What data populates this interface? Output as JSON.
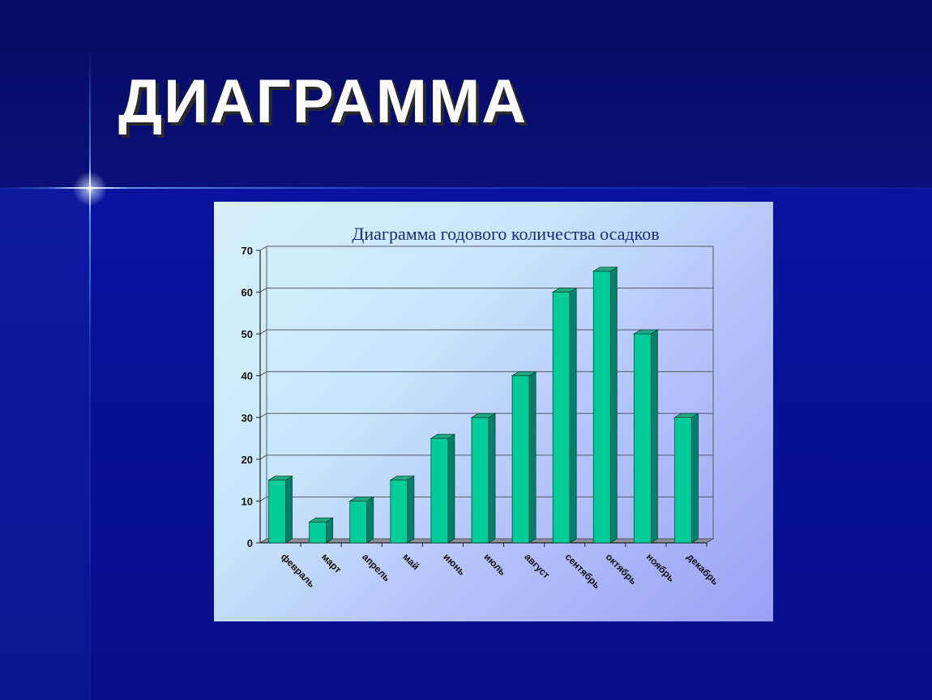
{
  "slide": {
    "title": "ДИАГРАММА"
  },
  "colors": {
    "background": "#0a0e86",
    "bar_front": "#00cc99",
    "bar_side": "#00806a",
    "bar_top": "#22a884",
    "chart_title": "#1c2a7a"
  },
  "chart_data": {
    "type": "bar",
    "title": "Диаграмма годового количества осадков",
    "xlabel": "",
    "ylabel": "",
    "categories": [
      "февраль",
      "март",
      "апрель",
      "май",
      "июнь",
      "июль",
      "август",
      "сентябрь",
      "октябрь",
      "ноябрь",
      "декабрь"
    ],
    "values": [
      15,
      5,
      10,
      15,
      25,
      30,
      40,
      60,
      65,
      50,
      30
    ],
    "ylim": [
      0,
      70
    ],
    "yticks": [
      0,
      10,
      20,
      30,
      40,
      50,
      60,
      70
    ],
    "grid": true,
    "legend": "none",
    "style": "3d-column"
  }
}
